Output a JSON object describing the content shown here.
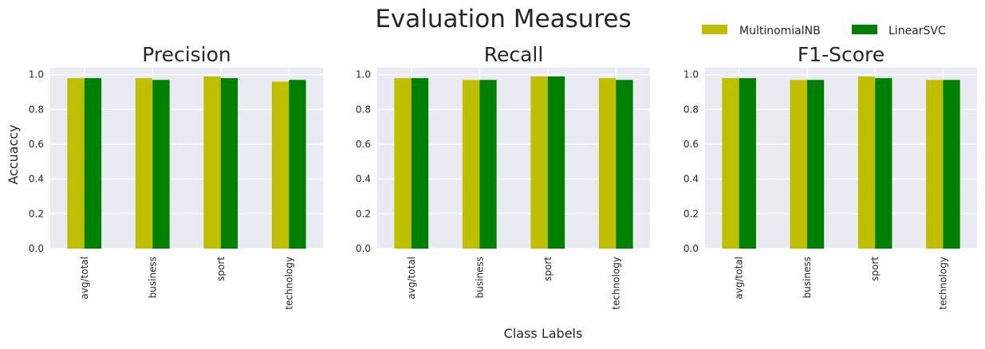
{
  "figure": {
    "title": "Evaluation Measures",
    "xlabel": "Class Labels",
    "ylabel": "Accuaccy"
  },
  "colors": {
    "axes_bg": "#eaeaf2",
    "grid": "#ffffff",
    "MultinomialNB": "#bfbf00",
    "LinearSVC": "#008000"
  },
  "legend": {
    "placement": "top-right",
    "items": [
      "MultinomialNB",
      "LinearSVC"
    ]
  },
  "chart_data": [
    {
      "type": "bar",
      "title": "Precision",
      "categories": [
        "avg/total",
        "business",
        "sport",
        "technology"
      ],
      "series": [
        {
          "name": "MultinomialNB",
          "values": [
            0.98,
            0.98,
            0.99,
            0.96
          ]
        },
        {
          "name": "LinearSVC",
          "values": [
            0.98,
            0.97,
            0.98,
            0.97
          ]
        }
      ],
      "ylim": [
        0,
        1.04
      ],
      "yticks": [
        "0.0",
        "0.2",
        "0.4",
        "0.6",
        "0.8",
        "1.0"
      ],
      "grid": true
    },
    {
      "type": "bar",
      "title": "Recall",
      "categories": [
        "avg/total",
        "business",
        "sport",
        "technology"
      ],
      "series": [
        {
          "name": "MultinomialNB",
          "values": [
            0.98,
            0.97,
            0.99,
            0.98
          ]
        },
        {
          "name": "LinearSVC",
          "values": [
            0.98,
            0.97,
            0.99,
            0.97
          ]
        }
      ],
      "ylim": [
        0,
        1.04
      ],
      "yticks": [
        "0.0",
        "0.2",
        "0.4",
        "0.6",
        "0.8",
        "1.0"
      ],
      "grid": true
    },
    {
      "type": "bar",
      "title": "F1-Score",
      "categories": [
        "avg/total",
        "business",
        "sport",
        "technology"
      ],
      "series": [
        {
          "name": "MultinomialNB",
          "values": [
            0.98,
            0.97,
            0.99,
            0.97
          ]
        },
        {
          "name": "LinearSVC",
          "values": [
            0.98,
            0.97,
            0.98,
            0.97
          ]
        }
      ],
      "ylim": [
        0,
        1.04
      ],
      "yticks": [
        "0.0",
        "0.2",
        "0.4",
        "0.6",
        "0.8",
        "1.0"
      ],
      "grid": true
    }
  ]
}
